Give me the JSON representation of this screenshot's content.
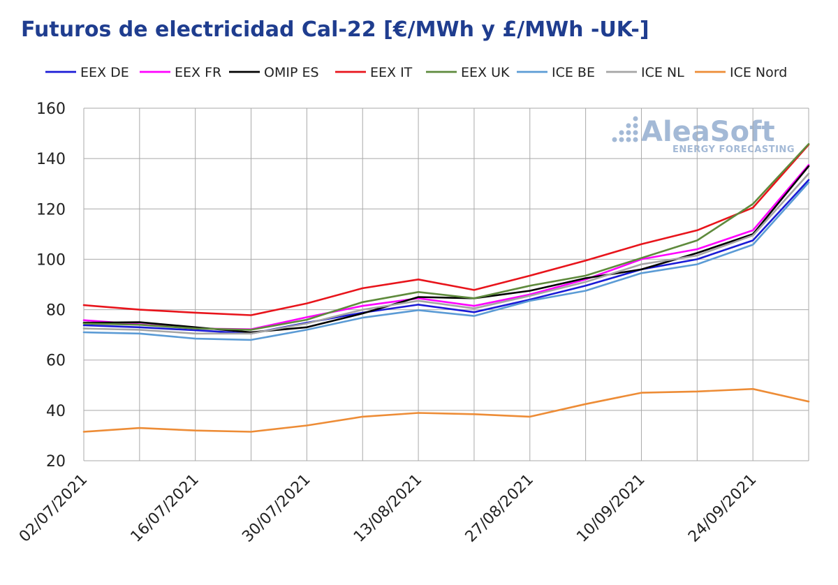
{
  "chart_data": {
    "type": "line",
    "title": "Futuros de electricidad Cal-22 [€/MWh y £/MWh -UK-]",
    "xlabel": "",
    "ylabel": "",
    "ylim": [
      20,
      160
    ],
    "yticks": [
      20,
      40,
      60,
      80,
      100,
      120,
      140,
      160
    ],
    "x": [
      "02/07/2021",
      "09/07/2021",
      "16/07/2021",
      "23/07/2021",
      "30/07/2021",
      "06/08/2021",
      "13/08/2021",
      "20/08/2021",
      "27/08/2021",
      "03/09/2021",
      "10/09/2021",
      "17/09/2021",
      "24/09/2021",
      "01/10/2021"
    ],
    "xtick_labels": [
      "02/07/2021",
      "16/07/2021",
      "30/07/2021",
      "13/08/2021",
      "27/08/2021",
      "10/09/2021",
      "24/09/2021"
    ],
    "grid": true,
    "legend_position": "top",
    "series": [
      {
        "name": "EEX DE",
        "color": "#1a1ad6",
        "values": [
          73.8,
          73.0,
          71.8,
          70.5,
          74.8,
          78.8,
          82.0,
          79.0,
          84.0,
          89.5,
          96.0,
          100.0,
          107.5,
          131.5
        ]
      },
      {
        "name": "EEX FR",
        "color": "#ff00ff",
        "values": [
          75.8,
          74.2,
          72.5,
          72.2,
          77.0,
          81.5,
          84.5,
          81.5,
          86.0,
          92.0,
          100.0,
          104.0,
          111.5,
          137.5
        ]
      },
      {
        "name": "OMIP ES",
        "color": "#000000",
        "values": [
          74.8,
          75.0,
          73.0,
          71.0,
          73.0,
          78.5,
          85.0,
          84.5,
          87.5,
          92.5,
          96.0,
          102.5,
          110.0,
          137.0
        ]
      },
      {
        "name": "EEX IT",
        "color": "#e8141b",
        "values": [
          81.8,
          80.0,
          78.8,
          77.8,
          82.5,
          88.5,
          92.0,
          87.8,
          93.5,
          99.5,
          106.0,
          111.5,
          120.5,
          145.5
        ]
      },
      {
        "name": "EEX UK",
        "color": "#5e8a3c",
        "values": [
          74.5,
          74.0,
          72.5,
          72.0,
          76.0,
          83.0,
          87.0,
          84.5,
          89.5,
          93.5,
          100.5,
          107.5,
          122.0,
          145.8
        ]
      },
      {
        "name": "ICE BE",
        "color": "#5b9bd5",
        "values": [
          71.0,
          70.5,
          68.5,
          68.0,
          72.0,
          76.8,
          79.8,
          77.5,
          83.5,
          87.5,
          94.5,
          98.0,
          105.8,
          130.5
        ]
      },
      {
        "name": "ICE NL",
        "color": "#a5a5a5",
        "values": [
          72.5,
          72.0,
          70.5,
          70.5,
          74.5,
          80.0,
          83.5,
          80.5,
          85.5,
          91.0,
          98.0,
          101.5,
          109.5,
          134.0
        ]
      },
      {
        "name": "ICE Nord",
        "color": "#ed8c36",
        "values": [
          31.5,
          33.0,
          32.0,
          31.5,
          34.0,
          37.5,
          39.0,
          38.5,
          37.5,
          42.5,
          47.0,
          47.5,
          48.5,
          43.5
        ]
      }
    ],
    "watermark": {
      "brand": "AleaSoft",
      "tagline": "ENERGY FORECASTING"
    }
  }
}
